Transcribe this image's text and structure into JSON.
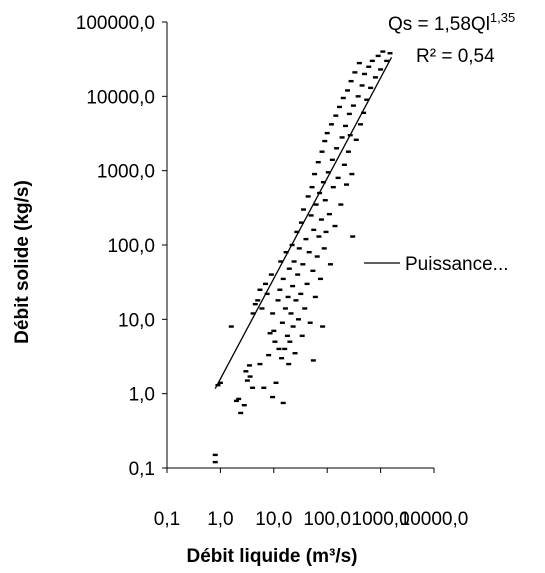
{
  "chart_data": {
    "type": "scatter",
    "xscale": "log",
    "yscale": "log",
    "xlim": [
      0.1,
      10000
    ],
    "ylim": [
      0.1,
      100000
    ],
    "grid": false,
    "xlabel": "Débit liquide (m³/s)",
    "ylabel": "Débit solide (kg/s)",
    "x_ticks": [
      {
        "value": 0.1,
        "label": "0,1"
      },
      {
        "value": 1,
        "label": "1,0"
      },
      {
        "value": 10,
        "label": "10,0"
      },
      {
        "value": 100,
        "label": "100,0"
      },
      {
        "value": 1000,
        "label": "1000,0"
      },
      {
        "value": 10000,
        "label": "10000,0"
      }
    ],
    "y_ticks": [
      {
        "value": 0.1,
        "label": "0,1"
      },
      {
        "value": 1,
        "label": "1,0"
      },
      {
        "value": 10,
        "label": "10,0"
      },
      {
        "value": 100,
        "label": "100,0"
      },
      {
        "value": 1000,
        "label": "1000,0"
      },
      {
        "value": 10000,
        "label": "10000,0"
      },
      {
        "value": 100000,
        "label": "100000,0"
      }
    ],
    "trendline": {
      "label": "Puissance...",
      "equation_prefix": "Qs = 1,58Ql",
      "equation_exponent": "1,35",
      "r2_text": "R² = 0,54",
      "coefficient": 1.58,
      "exponent": 1.35,
      "x_range": [
        0.8,
        1600
      ]
    },
    "points": [
      [
        0.8,
        0.12
      ],
      [
        0.8,
        0.15
      ],
      [
        0.9,
        1.3
      ],
      [
        1.0,
        1.4
      ],
      [
        1.6,
        8
      ],
      [
        2.0,
        0.8
      ],
      [
        2.2,
        0.85
      ],
      [
        2.4,
        0.55
      ],
      [
        2.8,
        0.7
      ],
      [
        3.0,
        2.0
      ],
      [
        3.2,
        1.5
      ],
      [
        3.5,
        2.4
      ],
      [
        3.6,
        1.7
      ],
      [
        4.0,
        1.2
      ],
      [
        4.1,
        12
      ],
      [
        4.5,
        16
      ],
      [
        5.0,
        18
      ],
      [
        5.5,
        2.5
      ],
      [
        5.5,
        25
      ],
      [
        6.0,
        14
      ],
      [
        6.5,
        1.2
      ],
      [
        7.0,
        30
      ],
      [
        7.5,
        22
      ],
      [
        8.0,
        3.3
      ],
      [
        8.5,
        6.5
      ],
      [
        9.0,
        40
      ],
      [
        9.5,
        0.9
      ],
      [
        9.5,
        12
      ],
      [
        10,
        7
      ],
      [
        10.5,
        5
      ],
      [
        11,
        1.4
      ],
      [
        12,
        18
      ],
      [
        12.5,
        4
      ],
      [
        13,
        25
      ],
      [
        13.5,
        60
      ],
      [
        14,
        3
      ],
      [
        14.5,
        9
      ],
      [
        15,
        0.75
      ],
      [
        15,
        35
      ],
      [
        16,
        4
      ],
      [
        16.5,
        14
      ],
      [
        17,
        80
      ],
      [
        18,
        6
      ],
      [
        18.5,
        20
      ],
      [
        19,
        2.5
      ],
      [
        19.5,
        48
      ],
      [
        20,
        5
      ],
      [
        21,
        12
      ],
      [
        22,
        100
      ],
      [
        22.5,
        28
      ],
      [
        23,
        8
      ],
      [
        24,
        60
      ],
      [
        25,
        3.5
      ],
      [
        26,
        18
      ],
      [
        27,
        150
      ],
      [
        28,
        40
      ],
      [
        29,
        10
      ],
      [
        30,
        90
      ],
      [
        32,
        22
      ],
      [
        33,
        200
      ],
      [
        34,
        6
      ],
      [
        35,
        55
      ],
      [
        36,
        300
      ],
      [
        38,
        14
      ],
      [
        40,
        120
      ],
      [
        42,
        30
      ],
      [
        44,
        450
      ],
      [
        46,
        80
      ],
      [
        48,
        9
      ],
      [
        50,
        250
      ],
      [
        52,
        600
      ],
      [
        54,
        45
      ],
      [
        55,
        2.8
      ],
      [
        56,
        160
      ],
      [
        58,
        900
      ],
      [
        60,
        20
      ],
      [
        62,
        350
      ],
      [
        65,
        70
      ],
      [
        68,
        1300
      ],
      [
        70,
        130
      ],
      [
        72,
        500
      ],
      [
        75,
        35
      ],
      [
        78,
        220
      ],
      [
        80,
        1800
      ],
      [
        82,
        8
      ],
      [
        85,
        700
      ],
      [
        88,
        90
      ],
      [
        90,
        2500
      ],
      [
        92,
        400
      ],
      [
        95,
        150
      ],
      [
        100,
        3200
      ],
      [
        105,
        950
      ],
      [
        110,
        260
      ],
      [
        115,
        55
      ],
      [
        120,
        4200
      ],
      [
        125,
        1400
      ],
      [
        130,
        600
      ],
      [
        140,
        180
      ],
      [
        145,
        5500
      ],
      [
        150,
        2000
      ],
      [
        160,
        800
      ],
      [
        170,
        7200
      ],
      [
        180,
        350
      ],
      [
        190,
        2800
      ],
      [
        200,
        9500
      ],
      [
        210,
        1200
      ],
      [
        220,
        4000
      ],
      [
        230,
        650
      ],
      [
        240,
        12000
      ],
      [
        250,
        1800
      ],
      [
        260,
        5800
      ],
      [
        270,
        3000
      ],
      [
        280,
        16000
      ],
      [
        290,
        900
      ],
      [
        300,
        130
      ],
      [
        310,
        7500
      ],
      [
        330,
        21000
      ],
      [
        350,
        2600
      ],
      [
        380,
        10000
      ],
      [
        400,
        28000
      ],
      [
        420,
        4200
      ],
      [
        450,
        14000
      ],
      [
        480,
        6000
      ],
      [
        500,
        20000
      ],
      [
        550,
        9000
      ],
      [
        600,
        25000
      ],
      [
        650,
        13000
      ],
      [
        700,
        30000
      ],
      [
        800,
        18000
      ],
      [
        900,
        35000
      ],
      [
        1000,
        23000
      ],
      [
        1100,
        40000
      ],
      [
        1300,
        30000
      ],
      [
        1500,
        38000
      ]
    ]
  }
}
